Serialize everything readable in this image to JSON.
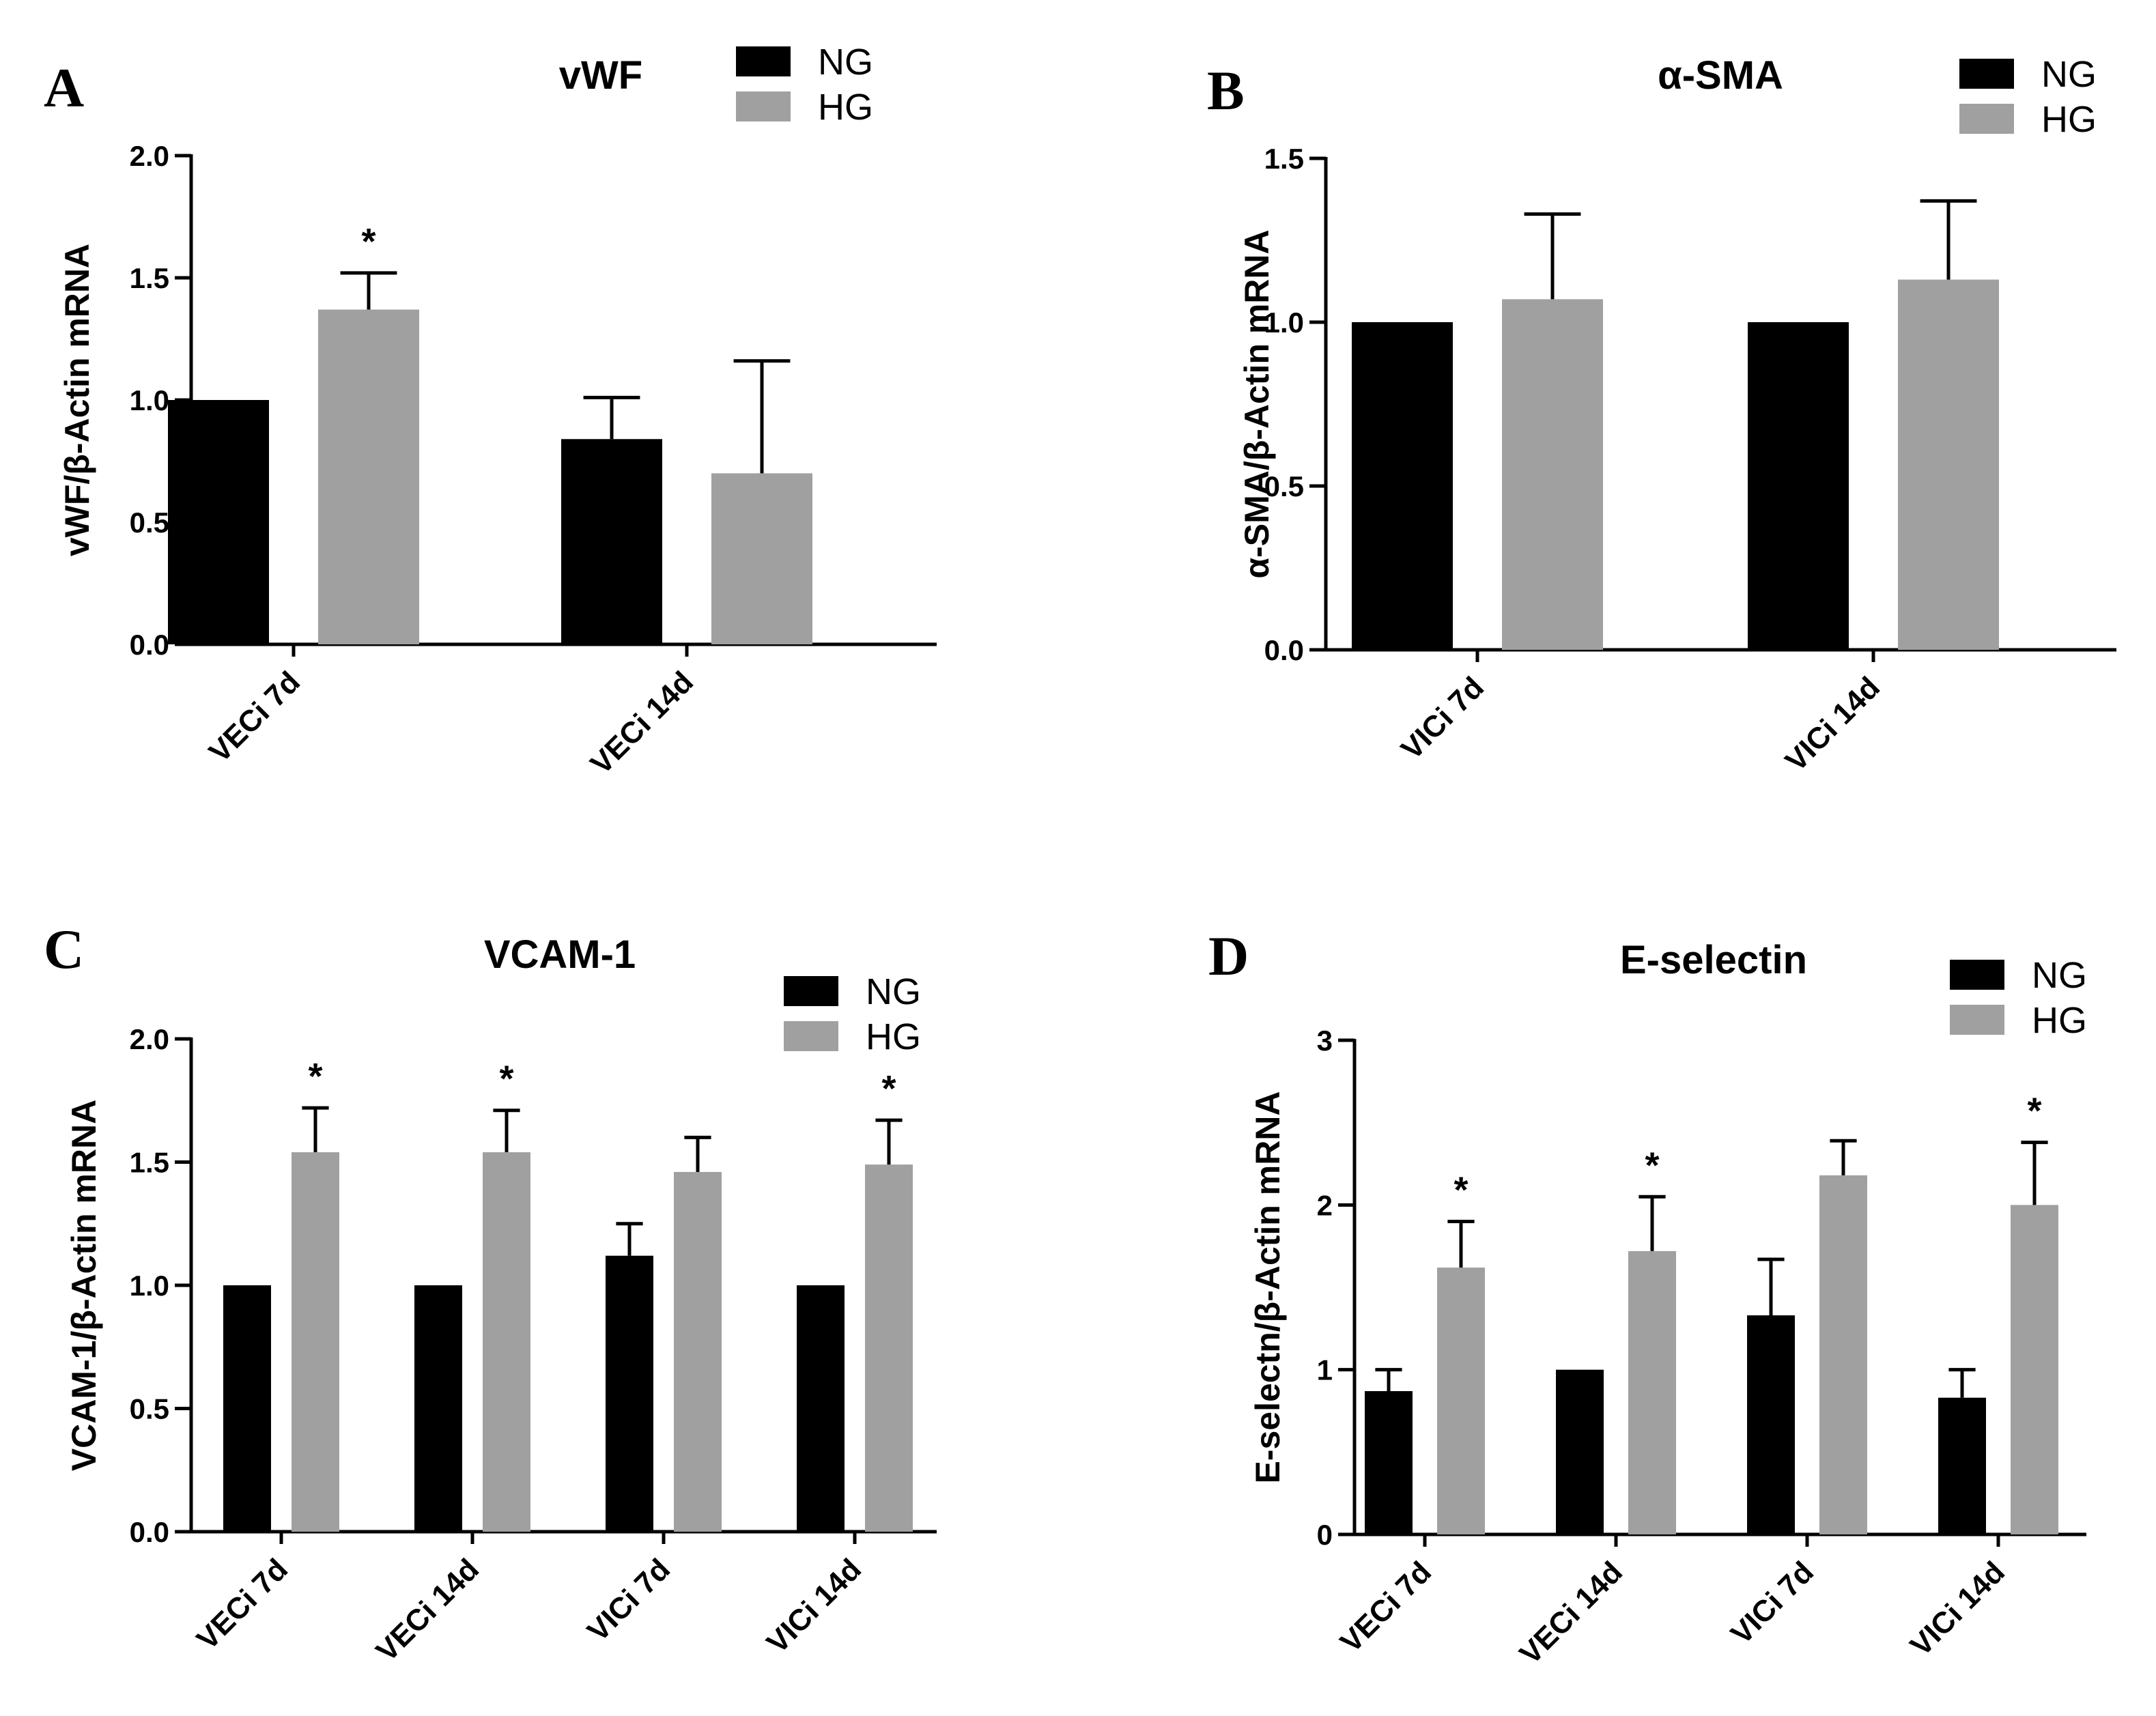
{
  "colors": {
    "NG": "#000000",
    "HG": "#a0a0a0",
    "axis": "#000000"
  },
  "legend": [
    "NG",
    "HG"
  ],
  "chart_data": [
    {
      "panel": "A",
      "type": "bar",
      "title": "vWF",
      "ylabel": "vWF/β-Actin mRNA",
      "ylim": [
        0,
        2.0
      ],
      "yticks": [
        "0.0",
        "0.5",
        "1.0",
        "1.5",
        "2.0"
      ],
      "categories": [
        "VECi 7d",
        "VECi 14d"
      ],
      "series": [
        {
          "name": "NG",
          "values": [
            1.0,
            0.84
          ],
          "errors": [
            0,
            0.17
          ]
        },
        {
          "name": "HG",
          "values": [
            1.37,
            0.7
          ],
          "errors": [
            0.15,
            0.46
          ]
        }
      ],
      "significance": [
        [
          false,
          false
        ],
        [
          true,
          false
        ]
      ],
      "legend_position": "top-right"
    },
    {
      "panel": "B",
      "type": "bar",
      "title": "α-SMA",
      "ylabel": "α-SMA/β-Actin mRNA",
      "ylim": [
        0,
        1.5
      ],
      "yticks": [
        "0.0",
        "0.5",
        "1.0",
        "1.5"
      ],
      "categories": [
        "VICi 7d",
        "VICi 14d"
      ],
      "series": [
        {
          "name": "NG",
          "values": [
            1.0,
            1.0
          ],
          "errors": [
            0,
            0
          ]
        },
        {
          "name": "HG",
          "values": [
            1.07,
            1.13
          ],
          "errors": [
            0.26,
            0.24
          ]
        }
      ],
      "significance": [
        [
          false,
          false
        ],
        [
          false,
          false
        ]
      ],
      "legend_position": "top-right"
    },
    {
      "panel": "C",
      "type": "bar",
      "title": "VCAM-1",
      "ylabel": "VCAM-1/β-Actin mRNA",
      "ylim": [
        0,
        2.0
      ],
      "yticks": [
        "0.0",
        "0.5",
        "1.0",
        "1.5",
        "2.0"
      ],
      "categories": [
        "VECi 7d",
        "VECi 14d",
        "VICi 7d",
        "VICi 14d"
      ],
      "series": [
        {
          "name": "NG",
          "values": [
            1.0,
            1.0,
            1.12,
            1.0
          ],
          "errors": [
            0,
            0,
            0.13,
            0
          ]
        },
        {
          "name": "HG",
          "values": [
            1.54,
            1.54,
            1.46,
            1.49
          ],
          "errors": [
            0.18,
            0.17,
            0.14,
            0.18
          ]
        }
      ],
      "significance": [
        [
          false,
          false,
          false,
          false
        ],
        [
          true,
          true,
          false,
          true
        ]
      ],
      "legend_position": "top-right"
    },
    {
      "panel": "D",
      "type": "bar",
      "title": "E-selectin",
      "ylabel": "E-selectn/β-Actin mRNA",
      "ylim": [
        0,
        3
      ],
      "yticks": [
        "0",
        "1",
        "2",
        "3"
      ],
      "categories": [
        "VECi 7d",
        "VECi 14d",
        "VICi 7d",
        "VICi 14d"
      ],
      "series": [
        {
          "name": "NG",
          "values": [
            0.87,
            1.0,
            1.33,
            0.83
          ],
          "errors": [
            0.13,
            0,
            0.34,
            0.17
          ]
        },
        {
          "name": "HG",
          "values": [
            1.62,
            1.72,
            2.18,
            2.0
          ],
          "errors": [
            0.28,
            0.33,
            0.21,
            0.38
          ]
        }
      ],
      "significance": [
        [
          false,
          false,
          false,
          false
        ],
        [
          true,
          true,
          false,
          true
        ]
      ],
      "legend_position": "top-right"
    }
  ]
}
